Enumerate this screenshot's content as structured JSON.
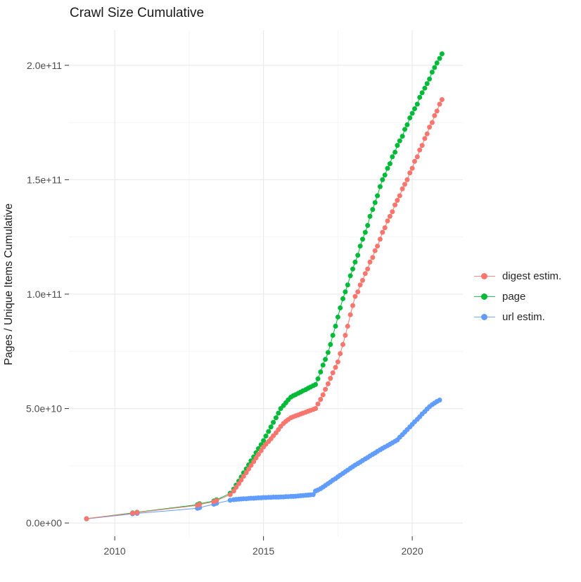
{
  "title": "Crawl Size Cumulative",
  "colors": {
    "digest": "#F8766D",
    "page": "#00BA38",
    "url": "#619CFF",
    "grid_major": "#EBEBEB",
    "grid_minor": "#F5F5F5",
    "tick_mark": "#333333",
    "axis_text": "#4D4D4D",
    "background": "#FFFFFF"
  },
  "chart_data": {
    "type": "line",
    "marker": "point",
    "title": "Crawl Size Cumulative",
    "xlabel": "",
    "ylabel": "Pages / Unique Items Cumulative",
    "legend_position": "right",
    "grid": "on",
    "value_unit": "billions of pages (1e9)",
    "xlim": [
      2008.46,
      2021.7
    ],
    "ylim_e9": [
      -5.8,
      215.3
    ],
    "x_axis": {
      "ticks": [
        {
          "label": "2010",
          "v": 2010
        },
        {
          "label": "2015",
          "v": 2015
        },
        {
          "label": "2020",
          "v": 2020
        }
      ],
      "minor": [
        2012.5,
        2017.5
      ]
    },
    "y_axis": {
      "ticks": [
        {
          "label": "0.0e+00",
          "v": 0
        },
        {
          "label": "5.0e+10",
          "v": 50
        },
        {
          "label": "1.0e+11",
          "v": 100
        },
        {
          "label": "1.5e+11",
          "v": 150
        },
        {
          "label": "2.0e+11",
          "v": 200
        }
      ],
      "minor": [
        25,
        75,
        125,
        175
      ]
    },
    "series": [
      {
        "name": "digest estim.",
        "color": "#F8766D",
        "points_e9": [
          [
            2009.05,
            1.9
          ],
          [
            2010.6,
            4.3
          ],
          [
            2010.75,
            4.6
          ],
          [
            2012.78,
            7.7
          ],
          [
            2012.85,
            8.1
          ],
          [
            2013.33,
            9.3
          ],
          [
            2013.42,
            9.8
          ],
          [
            2013.88,
            12.4
          ],
          [
            2014.0,
            14.0
          ],
          [
            2014.08,
            15.6
          ],
          [
            2014.17,
            17.2
          ],
          [
            2014.25,
            18.8
          ],
          [
            2014.33,
            20.4
          ],
          [
            2014.42,
            22.0
          ],
          [
            2014.5,
            23.6
          ],
          [
            2014.58,
            25.2
          ],
          [
            2014.67,
            26.8
          ],
          [
            2014.75,
            28.4
          ],
          [
            2014.83,
            30.0
          ],
          [
            2014.92,
            31.6
          ],
          [
            2015.0,
            33.2
          ],
          [
            2015.08,
            34.4
          ],
          [
            2015.17,
            35.6
          ],
          [
            2015.25,
            36.8
          ],
          [
            2015.33,
            38.1
          ],
          [
            2015.42,
            39.4
          ],
          [
            2015.5,
            40.8
          ],
          [
            2015.58,
            42.2
          ],
          [
            2015.67,
            43.5
          ],
          [
            2015.75,
            44.4
          ],
          [
            2015.83,
            45.2
          ],
          [
            2015.92,
            46.0
          ],
          [
            2016.0,
            46.4
          ],
          [
            2016.08,
            46.8
          ],
          [
            2016.17,
            47.2
          ],
          [
            2016.25,
            47.6
          ],
          [
            2016.33,
            48.0
          ],
          [
            2016.42,
            48.4
          ],
          [
            2016.5,
            48.8
          ],
          [
            2016.58,
            49.2
          ],
          [
            2016.67,
            49.6
          ],
          [
            2016.75,
            50.0
          ],
          [
            2016.83,
            52.0
          ],
          [
            2016.92,
            54.0
          ],
          [
            2017.0,
            56.0
          ],
          [
            2017.08,
            58.4
          ],
          [
            2017.17,
            60.8
          ],
          [
            2017.25,
            63.2
          ],
          [
            2017.33,
            65.6
          ],
          [
            2017.42,
            68.0
          ],
          [
            2017.5,
            70.4
          ],
          [
            2017.58,
            74.0
          ],
          [
            2017.67,
            78.0
          ],
          [
            2017.75,
            82.0
          ],
          [
            2017.83,
            86.0
          ],
          [
            2017.92,
            91.0
          ],
          [
            2018.0,
            95.0
          ],
          [
            2018.08,
            99.0
          ],
          [
            2018.17,
            101.0
          ],
          [
            2018.25,
            104.0
          ],
          [
            2018.33,
            106.0
          ],
          [
            2018.42,
            109.0
          ],
          [
            2018.5,
            111.0
          ],
          [
            2018.58,
            114.0
          ],
          [
            2018.67,
            116.0
          ],
          [
            2018.75,
            119.0
          ],
          [
            2018.83,
            121.0
          ],
          [
            2018.92,
            124.0
          ],
          [
            2019.0,
            127.0
          ],
          [
            2019.08,
            129.0
          ],
          [
            2019.17,
            132.0
          ],
          [
            2019.25,
            134.0
          ],
          [
            2019.33,
            136.0
          ],
          [
            2019.42,
            139.0
          ],
          [
            2019.5,
            141.0
          ],
          [
            2019.58,
            143.0
          ],
          [
            2019.67,
            146.0
          ],
          [
            2019.75,
            148.0
          ],
          [
            2019.83,
            150.0
          ],
          [
            2019.92,
            153.0
          ],
          [
            2020.0,
            155.0
          ],
          [
            2020.08,
            158.0
          ],
          [
            2020.17,
            160.0
          ],
          [
            2020.25,
            163.0
          ],
          [
            2020.33,
            165.0
          ],
          [
            2020.42,
            168.0
          ],
          [
            2020.5,
            170.0
          ],
          [
            2020.58,
            173.0
          ],
          [
            2020.67,
            175.0
          ],
          [
            2020.75,
            178.0
          ],
          [
            2020.83,
            180.0
          ],
          [
            2020.92,
            183.0
          ],
          [
            2021.0,
            185.0
          ]
        ]
      },
      {
        "name": "page",
        "color": "#00BA38",
        "points_e9": [
          [
            2009.05,
            1.9
          ],
          [
            2010.6,
            4.4
          ],
          [
            2010.75,
            4.7
          ],
          [
            2012.78,
            8.0
          ],
          [
            2012.85,
            8.4
          ],
          [
            2013.33,
            9.6
          ],
          [
            2013.42,
            10.1
          ],
          [
            2013.88,
            13.0
          ],
          [
            2014.0,
            14.8
          ],
          [
            2014.08,
            16.6
          ],
          [
            2014.17,
            18.3
          ],
          [
            2014.25,
            20.1
          ],
          [
            2014.33,
            21.9
          ],
          [
            2014.42,
            23.6
          ],
          [
            2014.5,
            25.4
          ],
          [
            2014.58,
            27.2
          ],
          [
            2014.67,
            28.9
          ],
          [
            2014.75,
            30.7
          ],
          [
            2014.83,
            32.5
          ],
          [
            2014.92,
            34.2
          ],
          [
            2015.0,
            36.0
          ],
          [
            2015.08,
            38.0
          ],
          [
            2015.17,
            40.0
          ],
          [
            2015.25,
            42.0
          ],
          [
            2015.33,
            44.0
          ],
          [
            2015.42,
            46.0
          ],
          [
            2015.5,
            48.0
          ],
          [
            2015.58,
            50.0
          ],
          [
            2015.67,
            51.3
          ],
          [
            2015.75,
            52.5
          ],
          [
            2015.83,
            53.8
          ],
          [
            2015.92,
            55.0
          ],
          [
            2016.0,
            55.6
          ],
          [
            2016.08,
            56.1
          ],
          [
            2016.17,
            56.7
          ],
          [
            2016.25,
            57.2
          ],
          [
            2016.33,
            57.8
          ],
          [
            2016.42,
            58.3
          ],
          [
            2016.5,
            58.9
          ],
          [
            2016.58,
            59.4
          ],
          [
            2016.67,
            60.0
          ],
          [
            2016.75,
            60.5
          ],
          [
            2016.83,
            63.0
          ],
          [
            2016.92,
            66.0
          ],
          [
            2017.0,
            69.0
          ],
          [
            2017.08,
            71.5
          ],
          [
            2017.17,
            74.5
          ],
          [
            2017.25,
            78.0
          ],
          [
            2017.33,
            82.0
          ],
          [
            2017.42,
            86.0
          ],
          [
            2017.5,
            90.0
          ],
          [
            2017.58,
            94.0
          ],
          [
            2017.67,
            98.0
          ],
          [
            2017.75,
            101.0
          ],
          [
            2017.83,
            104.0
          ],
          [
            2017.92,
            108.0
          ],
          [
            2018.0,
            111.0
          ],
          [
            2018.08,
            114.0
          ],
          [
            2018.17,
            117.0
          ],
          [
            2018.25,
            121.0
          ],
          [
            2018.33,
            124.0
          ],
          [
            2018.42,
            127.0
          ],
          [
            2018.5,
            130.0
          ],
          [
            2018.58,
            134.0
          ],
          [
            2018.67,
            137.0
          ],
          [
            2018.75,
            140.0
          ],
          [
            2018.83,
            143.0
          ],
          [
            2018.92,
            147.0
          ],
          [
            2019.0,
            150.0
          ],
          [
            2019.08,
            152.0
          ],
          [
            2019.17,
            155.0
          ],
          [
            2019.25,
            157.0
          ],
          [
            2019.33,
            160.0
          ],
          [
            2019.42,
            162.0
          ],
          [
            2019.5,
            165.0
          ],
          [
            2019.58,
            167.0
          ],
          [
            2019.67,
            169.0
          ],
          [
            2019.75,
            172.0
          ],
          [
            2019.83,
            174.0
          ],
          [
            2019.92,
            177.0
          ],
          [
            2020.0,
            179.0
          ],
          [
            2020.08,
            181.0
          ],
          [
            2020.17,
            183.0
          ],
          [
            2020.25,
            186.0
          ],
          [
            2020.33,
            188.0
          ],
          [
            2020.42,
            190.0
          ],
          [
            2020.5,
            192.0
          ],
          [
            2020.58,
            194.0
          ],
          [
            2020.67,
            197.0
          ],
          [
            2020.75,
            199.0
          ],
          [
            2020.83,
            201.0
          ],
          [
            2020.92,
            203.0
          ],
          [
            2021.0,
            205.0
          ]
        ]
      },
      {
        "name": "url estim.",
        "color": "#619CFF",
        "points_e9": [
          [
            2009.05,
            1.8
          ],
          [
            2010.6,
            4.0
          ],
          [
            2010.75,
            4.2
          ],
          [
            2012.78,
            6.4
          ],
          [
            2012.85,
            6.7
          ],
          [
            2013.33,
            8.2
          ],
          [
            2013.42,
            8.6
          ],
          [
            2013.88,
            9.9
          ],
          [
            2014.0,
            10.2
          ],
          [
            2014.08,
            10.3
          ],
          [
            2014.17,
            10.4
          ],
          [
            2014.25,
            10.5
          ],
          [
            2014.33,
            10.6
          ],
          [
            2014.42,
            10.6
          ],
          [
            2014.5,
            10.7
          ],
          [
            2014.58,
            10.8
          ],
          [
            2014.67,
            10.8
          ],
          [
            2014.75,
            10.9
          ],
          [
            2014.83,
            11.0
          ],
          [
            2014.92,
            11.0
          ],
          [
            2015.0,
            11.1
          ],
          [
            2015.08,
            11.1
          ],
          [
            2015.17,
            11.2
          ],
          [
            2015.25,
            11.2
          ],
          [
            2015.33,
            11.3
          ],
          [
            2015.42,
            11.3
          ],
          [
            2015.5,
            11.3
          ],
          [
            2015.58,
            11.4
          ],
          [
            2015.67,
            11.4
          ],
          [
            2015.75,
            11.5
          ],
          [
            2015.83,
            11.5
          ],
          [
            2015.92,
            11.6
          ],
          [
            2016.0,
            11.6
          ],
          [
            2016.08,
            11.7
          ],
          [
            2016.17,
            11.8
          ],
          [
            2016.25,
            11.9
          ],
          [
            2016.33,
            12.0
          ],
          [
            2016.42,
            12.1
          ],
          [
            2016.5,
            12.2
          ],
          [
            2016.58,
            12.3
          ],
          [
            2016.67,
            12.4
          ],
          [
            2016.75,
            14.0
          ],
          [
            2016.83,
            14.4
          ],
          [
            2016.92,
            15.0
          ],
          [
            2017.0,
            15.7
          ],
          [
            2017.08,
            16.4
          ],
          [
            2017.17,
            17.2
          ],
          [
            2017.25,
            17.9
          ],
          [
            2017.33,
            18.7
          ],
          [
            2017.42,
            19.4
          ],
          [
            2017.5,
            20.2
          ],
          [
            2017.58,
            20.9
          ],
          [
            2017.67,
            21.7
          ],
          [
            2017.75,
            22.4
          ],
          [
            2017.83,
            23.1
          ],
          [
            2017.92,
            23.9
          ],
          [
            2018.0,
            24.6
          ],
          [
            2018.08,
            25.3
          ],
          [
            2018.17,
            26.0
          ],
          [
            2018.25,
            26.6
          ],
          [
            2018.33,
            27.3
          ],
          [
            2018.42,
            28.0
          ],
          [
            2018.5,
            28.6
          ],
          [
            2018.58,
            29.3
          ],
          [
            2018.67,
            30.0
          ],
          [
            2018.75,
            30.6
          ],
          [
            2018.83,
            31.3
          ],
          [
            2018.92,
            32.0
          ],
          [
            2019.0,
            32.6
          ],
          [
            2019.08,
            33.2
          ],
          [
            2019.17,
            33.8
          ],
          [
            2019.25,
            34.4
          ],
          [
            2019.33,
            35.0
          ],
          [
            2019.42,
            35.7
          ],
          [
            2019.5,
            36.3
          ],
          [
            2019.58,
            37.5
          ],
          [
            2019.67,
            38.6
          ],
          [
            2019.75,
            39.7
          ],
          [
            2019.83,
            40.8
          ],
          [
            2019.92,
            42.0
          ],
          [
            2020.0,
            43.1
          ],
          [
            2020.08,
            44.2
          ],
          [
            2020.17,
            45.3
          ],
          [
            2020.25,
            46.4
          ],
          [
            2020.33,
            47.6
          ],
          [
            2020.42,
            48.7
          ],
          [
            2020.5,
            49.8
          ],
          [
            2020.58,
            50.8
          ],
          [
            2020.67,
            51.7
          ],
          [
            2020.75,
            52.4
          ],
          [
            2020.83,
            53.1
          ],
          [
            2020.92,
            53.7
          ]
        ]
      }
    ]
  }
}
